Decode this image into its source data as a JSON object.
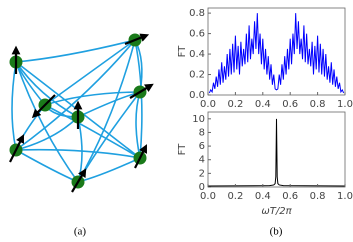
{
  "figure": {
    "panel_a_label": "(a)",
    "panel_b_label": "(b)"
  },
  "chart_data": [
    {
      "type": "line",
      "ylabel": "FT",
      "color": "#0000ff",
      "x": [
        0.01,
        0.02,
        0.03,
        0.04,
        0.05,
        0.06,
        0.07,
        0.08,
        0.09,
        0.1,
        0.11,
        0.12,
        0.13,
        0.14,
        0.15,
        0.16,
        0.17,
        0.18,
        0.19,
        0.2,
        0.21,
        0.22,
        0.23,
        0.24,
        0.25,
        0.26,
        0.27,
        0.28,
        0.29,
        0.3,
        0.31,
        0.32,
        0.33,
        0.34,
        0.35,
        0.36,
        0.37,
        0.38,
        0.39,
        0.4,
        0.41,
        0.42,
        0.43,
        0.44,
        0.45,
        0.46,
        0.47,
        0.48,
        0.49,
        0.5,
        0.51,
        0.52,
        0.53,
        0.54,
        0.55,
        0.56,
        0.57,
        0.58,
        0.59,
        0.6,
        0.61,
        0.62,
        0.63,
        0.64,
        0.65,
        0.66,
        0.67,
        0.68,
        0.69,
        0.7,
        0.71,
        0.72,
        0.73,
        0.74,
        0.75,
        0.76,
        0.77,
        0.78,
        0.79,
        0.8,
        0.81,
        0.82,
        0.83,
        0.84,
        0.85,
        0.86,
        0.87,
        0.88,
        0.89,
        0.9,
        0.91,
        0.92,
        0.93,
        0.94,
        0.95,
        0.96,
        0.97,
        0.98,
        0.99
      ],
      "values": [
        0.02,
        0.05,
        0.03,
        0.12,
        0.06,
        0.18,
        0.08,
        0.25,
        0.1,
        0.32,
        0.12,
        0.28,
        0.15,
        0.4,
        0.18,
        0.45,
        0.2,
        0.5,
        0.22,
        0.58,
        0.25,
        0.48,
        0.2,
        0.52,
        0.28,
        0.45,
        0.3,
        0.6,
        0.32,
        0.68,
        0.35,
        0.55,
        0.4,
        0.72,
        0.45,
        0.8,
        0.4,
        0.6,
        0.3,
        0.55,
        0.25,
        0.45,
        0.2,
        0.38,
        0.15,
        0.3,
        0.1,
        0.2,
        0.06,
        0.05,
        0.06,
        0.2,
        0.1,
        0.3,
        0.15,
        0.38,
        0.2,
        0.45,
        0.25,
        0.55,
        0.3,
        0.6,
        0.4,
        0.8,
        0.45,
        0.72,
        0.4,
        0.55,
        0.35,
        0.68,
        0.32,
        0.6,
        0.3,
        0.45,
        0.28,
        0.52,
        0.2,
        0.48,
        0.25,
        0.58,
        0.22,
        0.5,
        0.2,
        0.45,
        0.18,
        0.4,
        0.15,
        0.28,
        0.12,
        0.32,
        0.1,
        0.25,
        0.08,
        0.18,
        0.06,
        0.12,
        0.03,
        0.05,
        0.02
      ],
      "xlim": [
        0,
        1
      ],
      "ylim": [
        0,
        0.85
      ],
      "xticks": [
        {
          "value": 0,
          "label": "0.0"
        },
        {
          "value": 0.2,
          "label": "0.2"
        },
        {
          "value": 0.4,
          "label": "0.4"
        },
        {
          "value": 0.6,
          "label": "0.6"
        },
        {
          "value": 0.8,
          "label": "0.8"
        },
        {
          "value": 1,
          "label": "1.0"
        }
      ],
      "yticks": [
        {
          "value": 0,
          "label": "0.0"
        },
        {
          "value": 0.2,
          "label": "0.2"
        },
        {
          "value": 0.4,
          "label": "0.4"
        },
        {
          "value": 0.6,
          "label": "0.6"
        },
        {
          "value": 0.8,
          "label": "0.8"
        }
      ]
    },
    {
      "type": "line",
      "ylabel": "FT",
      "xlabel": "ωT/2π",
      "color": "#000000",
      "x": [
        0,
        0.45,
        0.48,
        0.49,
        0.495,
        0.5,
        0.505,
        0.51,
        0.52,
        0.55,
        1
      ],
      "values": [
        0.15,
        0.2,
        0.3,
        0.5,
        1.5,
        10,
        1.5,
        0.5,
        0.3,
        0.2,
        0.15
      ],
      "xlim": [
        0,
        1
      ],
      "ylim": [
        0,
        11
      ],
      "xticks": [
        {
          "value": 0,
          "label": "0.0"
        },
        {
          "value": 0.2,
          "label": "0.2"
        },
        {
          "value": 0.4,
          "label": "0.4"
        },
        {
          "value": 0.6,
          "label": "0.6"
        },
        {
          "value": 0.8,
          "label": "0.8"
        },
        {
          "value": 1,
          "label": "1.0"
        }
      ],
      "yticks": [
        0,
        2,
        4,
        6,
        8,
        10
      ]
    }
  ]
}
